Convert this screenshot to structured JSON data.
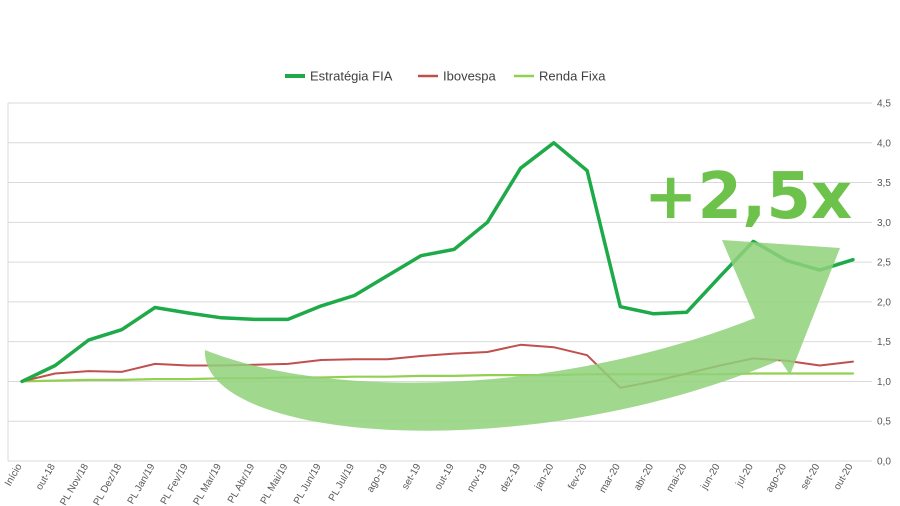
{
  "chart_data": {
    "type": "line",
    "title": "",
    "xlabel": "",
    "ylabel": "",
    "ylim": [
      0,
      4.5
    ],
    "y_ticks": [
      "0,0",
      "0,5",
      "1,0",
      "1,5",
      "2,0",
      "2,5",
      "3,0",
      "3,5",
      "4,0",
      "4,5"
    ],
    "y_axis_side": "right",
    "grid": true,
    "legend_position": "top",
    "categories": [
      "Início",
      "out-18",
      "PL Nov/18",
      "PL Dez/18",
      "PL Jan/19",
      "PL Fev/19",
      "PL Mar/19",
      "PL Abr/19",
      "PL Mai/19",
      "PL Jun/19",
      "PL Jul/19",
      "ago-19",
      "set-19",
      "out-19",
      "nov-19",
      "dez-19",
      "jan-20",
      "fev-20",
      "mar-20",
      "abr-20",
      "mai-20",
      "jun-20",
      "jul-20",
      "ago-20",
      "set-20",
      "out-20"
    ],
    "series": [
      {
        "name": "Estratégia FIA",
        "color": "#1faa4a",
        "values": [
          1.0,
          1.2,
          1.52,
          1.65,
          1.93,
          1.86,
          1.8,
          1.78,
          1.78,
          1.95,
          2.08,
          2.33,
          2.58,
          2.66,
          3.0,
          3.68,
          4.0,
          3.65,
          1.94,
          1.85,
          1.87,
          2.32,
          2.76,
          2.52,
          2.4,
          2.53
        ]
      },
      {
        "name": "Ibovespa",
        "color": "#c0504d",
        "values": [
          1.0,
          1.1,
          1.13,
          1.12,
          1.22,
          1.2,
          1.2,
          1.21,
          1.22,
          1.27,
          1.28,
          1.28,
          1.32,
          1.35,
          1.37,
          1.46,
          1.43,
          1.33,
          0.92,
          1.0,
          1.1,
          1.2,
          1.29,
          1.26,
          1.2,
          1.25
        ]
      },
      {
        "name": "Renda Fixa",
        "color": "#92d050",
        "values": [
          1.0,
          1.01,
          1.02,
          1.02,
          1.03,
          1.03,
          1.04,
          1.04,
          1.05,
          1.05,
          1.06,
          1.06,
          1.07,
          1.07,
          1.08,
          1.08,
          1.08,
          1.09,
          1.09,
          1.09,
          1.09,
          1.09,
          1.1,
          1.1,
          1.1,
          1.1
        ]
      }
    ],
    "annotation": {
      "text": "+2,5x",
      "text_color": "#6cc24a",
      "arrow_color": "#8fd17a"
    }
  }
}
